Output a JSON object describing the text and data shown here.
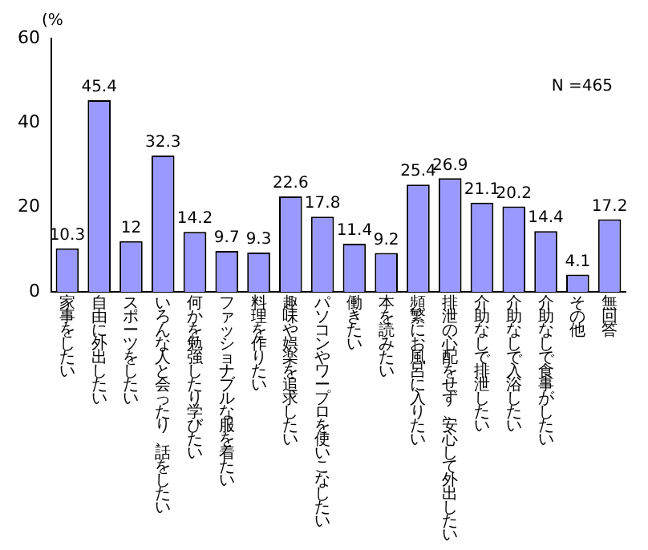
{
  "chart_data": {
    "type": "bar",
    "ylabel": "(%",
    "categories": [
      "家事をしたい",
      "自由に外出したい",
      "スポーツをしたい",
      "いろんな人と会ったり、話をしたい",
      "何かを勉強したり学びたい",
      "ファッショナブルな服を着たい",
      "料理を作りたい",
      "趣味や娯楽を追求したい",
      "パソコンやワープロを使いこなしたい",
      "働きたい",
      "本を読みたい",
      "頻繁にお風呂に入りたい",
      "排泄の心配をせず、安心して外出したい",
      "介助なしで排泄したい",
      "介助なしで入浴したい",
      "介助なしで食事がしたい",
      "その他",
      "無回答"
    ],
    "values": [
      10.3,
      45.4,
      12,
      32.3,
      14.2,
      9.7,
      9.3,
      22.6,
      17.8,
      11.4,
      9.2,
      25.4,
      26.9,
      21.1,
      20.2,
      14.4,
      4.1,
      17.2
    ],
    "color": "#9999ff",
    "ylim": [
      0,
      60
    ],
    "yticks": [
      0,
      20,
      40,
      60
    ],
    "data_labels": true,
    "grid": false,
    "annotations": [
      "N =465"
    ]
  }
}
